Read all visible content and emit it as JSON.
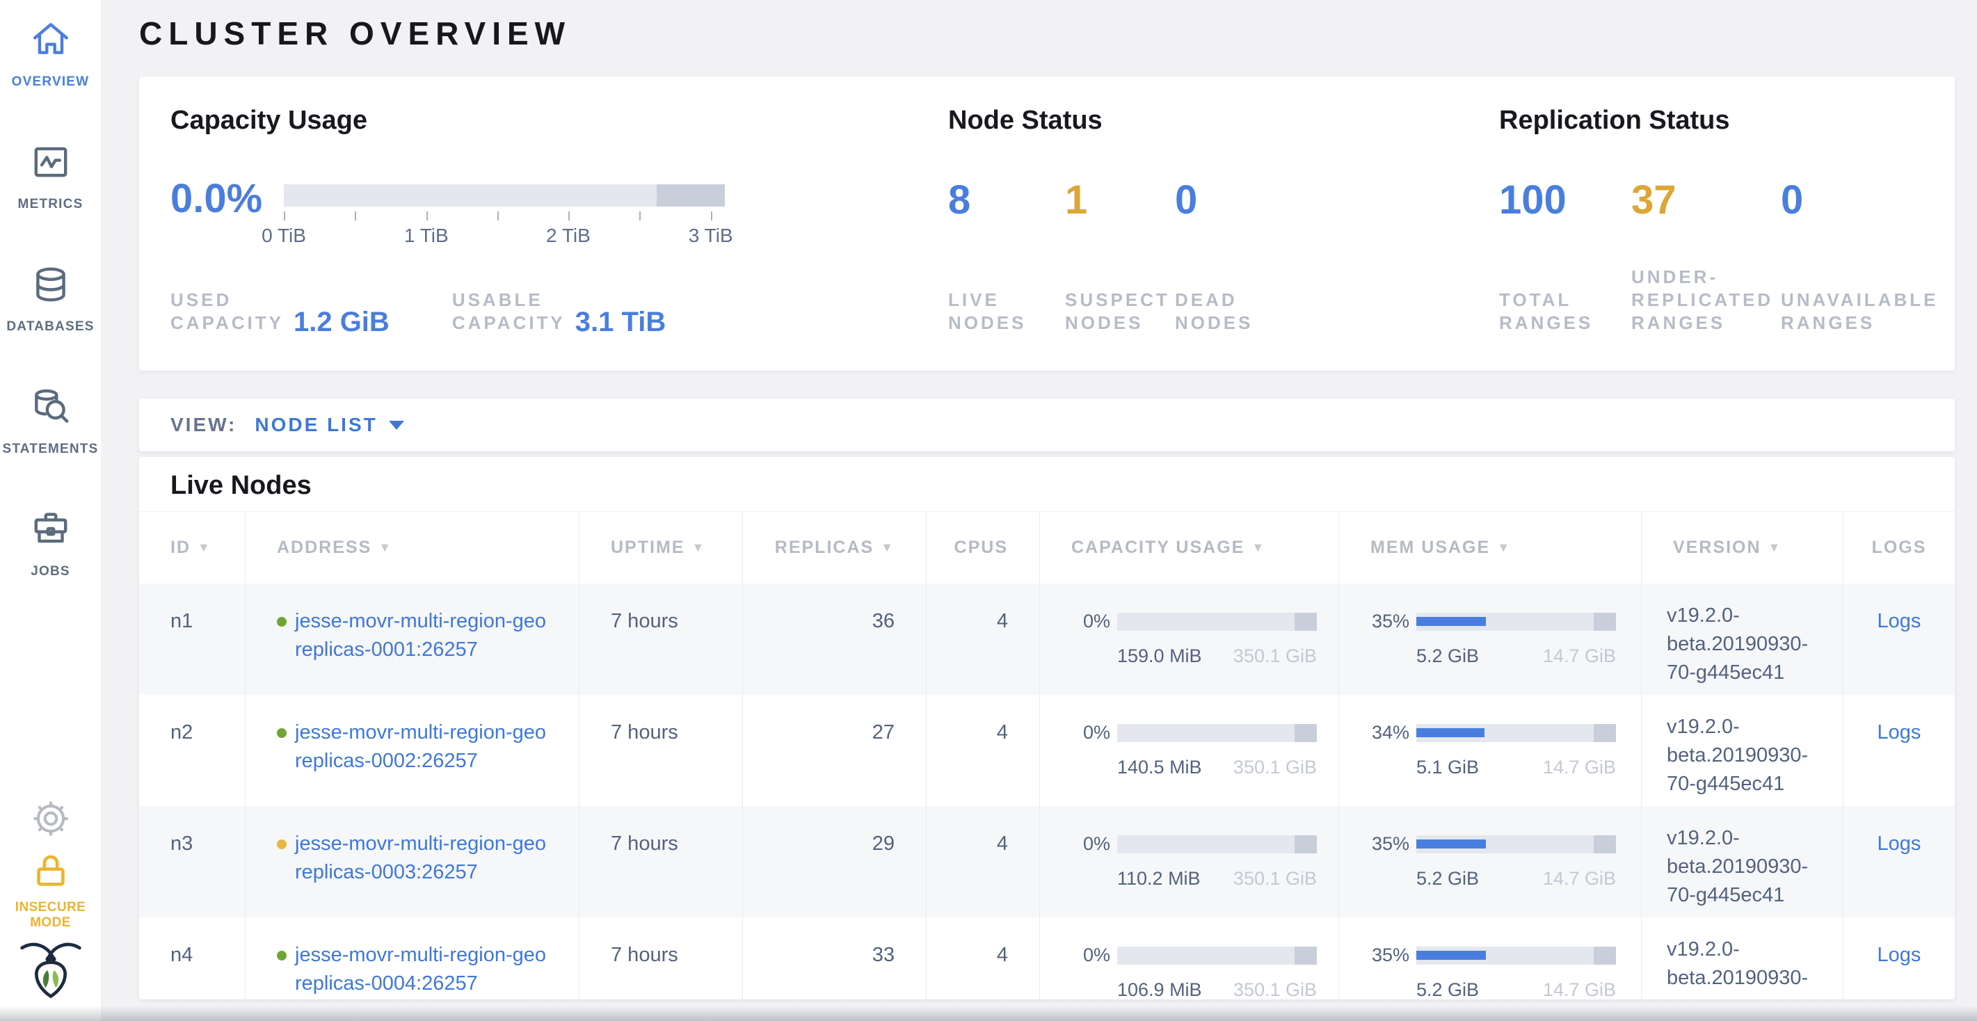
{
  "app": {
    "title": "CLUSTER OVERVIEW"
  },
  "colors": {
    "accent_blue": "#4a7ede",
    "accent_yellow": "#dca736",
    "link_blue": "#3e78d8",
    "insecure_yellow": "#ecb42e",
    "healthy_dot_green": "#70a533",
    "suspect_dot_yellow": "#e9b63e"
  },
  "sidebar": {
    "items": [
      {
        "label": "OVERVIEW",
        "icon": "home",
        "active": true
      },
      {
        "label": "METRICS",
        "icon": "metrics",
        "active": false
      },
      {
        "label": "DATABASES",
        "icon": "databases",
        "active": false
      },
      {
        "label": "STATEMENTS",
        "icon": "statements",
        "active": false
      },
      {
        "label": "JOBS",
        "icon": "jobs",
        "active": false
      }
    ],
    "insecure_label": "INSECURE MODE"
  },
  "summary": {
    "capacity": {
      "title": "Capacity Usage",
      "percent": "0.0%",
      "axis_ticks": [
        "0 TiB",
        "1 TiB",
        "2 TiB",
        "3 TiB"
      ],
      "used": {
        "label": "USED\nCAPACITY",
        "value": "1.2 GiB"
      },
      "usable": {
        "label": "USABLE\nCAPACITY",
        "value": "3.1 TiB"
      }
    },
    "node_status": {
      "title": "Node Status",
      "stats": [
        {
          "value": "8",
          "label": "LIVE\nNODES",
          "tone": "blue"
        },
        {
          "value": "1",
          "label": "SUSPECT\nNODES",
          "tone": "yellow"
        },
        {
          "value": "0",
          "label": "DEAD\nNODES",
          "tone": "blue"
        }
      ]
    },
    "replication": {
      "title": "Replication Status",
      "stats": [
        {
          "value": "100",
          "label": "TOTAL\nRANGES",
          "tone": "blue"
        },
        {
          "value": "37",
          "label": "UNDER-\nREPLICATED\nRANGES",
          "tone": "yellow"
        },
        {
          "value": "0",
          "label": "UNAVAILABLE\nRANGES",
          "tone": "blue"
        }
      ]
    }
  },
  "view_bar": {
    "label": "VIEW:",
    "selected": "NODE LIST"
  },
  "live_nodes": {
    "title": "Live Nodes",
    "columns": [
      {
        "label": "ID",
        "sortable": true
      },
      {
        "label": "ADDRESS",
        "sortable": true
      },
      {
        "label": "UPTIME",
        "sortable": true
      },
      {
        "label": "REPLICAS",
        "sortable": true
      },
      {
        "label": "CPUS",
        "sortable": false
      },
      {
        "label": "CAPACITY USAGE",
        "sortable": true
      },
      {
        "label": "MEM USAGE",
        "sortable": true
      },
      {
        "label": "VERSION",
        "sortable": true
      },
      {
        "label": "LOGS",
        "sortable": false
      }
    ],
    "rows": [
      {
        "id": "n1",
        "status": "healthy",
        "address": "jesse-movr-multi-region-geo\nreplicas-0001:26257",
        "uptime": "7 hours",
        "replicas": "36",
        "cpus": "4",
        "capacity": {
          "percent": "0%",
          "used": "159.0 MiB",
          "total": "350.1 GiB"
        },
        "memory": {
          "percent": "35%",
          "used": "5.2 GiB",
          "total": "14.7 GiB"
        },
        "version": "v19.2.0-\nbeta.20190930-\n70-g445ec41",
        "logs_label": "Logs"
      },
      {
        "id": "n2",
        "status": "healthy",
        "address": "jesse-movr-multi-region-geo\nreplicas-0002:26257",
        "uptime": "7 hours",
        "replicas": "27",
        "cpus": "4",
        "capacity": {
          "percent": "0%",
          "used": "140.5 MiB",
          "total": "350.1 GiB"
        },
        "memory": {
          "percent": "34%",
          "used": "5.1 GiB",
          "total": "14.7 GiB"
        },
        "version": "v19.2.0-\nbeta.20190930-\n70-g445ec41",
        "logs_label": "Logs"
      },
      {
        "id": "n3",
        "status": "suspect",
        "address": "jesse-movr-multi-region-geo\nreplicas-0003:26257",
        "uptime": "7 hours",
        "replicas": "29",
        "cpus": "4",
        "capacity": {
          "percent": "0%",
          "used": "110.2 MiB",
          "total": "350.1 GiB"
        },
        "memory": {
          "percent": "35%",
          "used": "5.2 GiB",
          "total": "14.7 GiB"
        },
        "version": "v19.2.0-\nbeta.20190930-\n70-g445ec41",
        "logs_label": "Logs"
      },
      {
        "id": "n4",
        "status": "healthy",
        "address": "jesse-movr-multi-region-geo\nreplicas-0004:26257",
        "uptime": "7 hours",
        "replicas": "33",
        "cpus": "4",
        "capacity": {
          "percent": "0%",
          "used": "106.9 MiB",
          "total": "350.1 GiB"
        },
        "memory": {
          "percent": "35%",
          "used": "5.2 GiB",
          "total": "14.7 GiB"
        },
        "version": "v19.2.0-\nbeta.20190930-",
        "logs_label": "Logs"
      }
    ]
  }
}
